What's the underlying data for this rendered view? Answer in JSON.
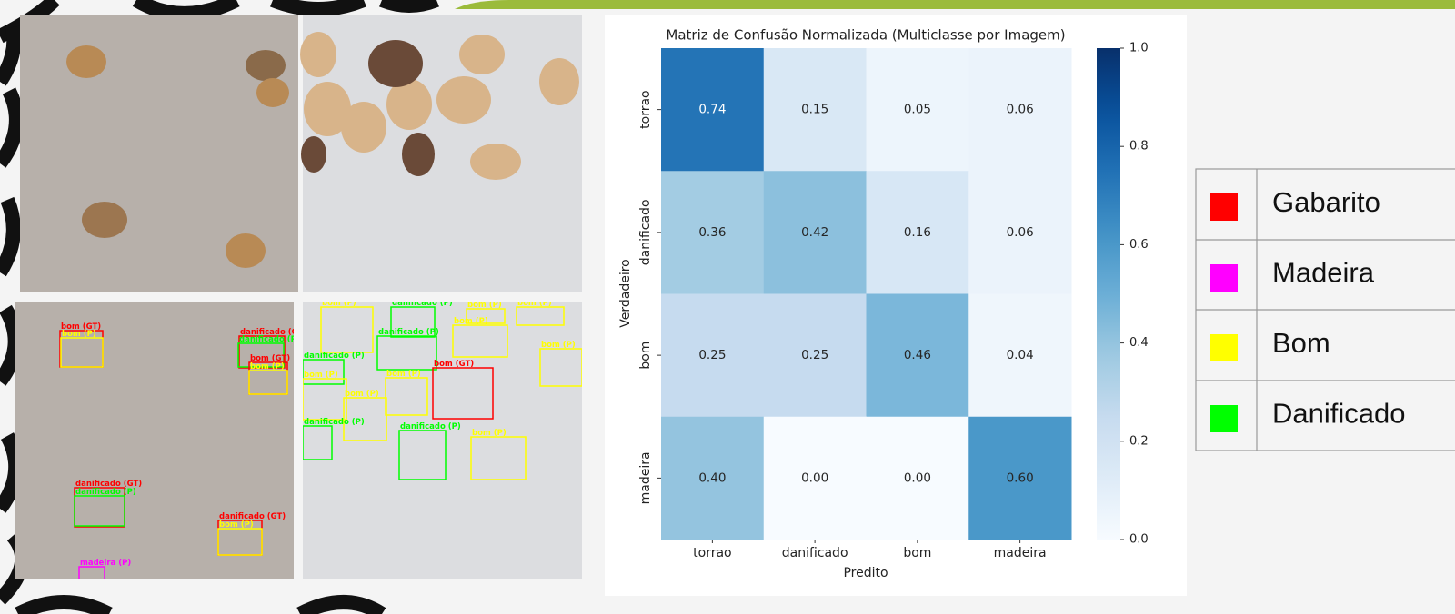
{
  "chart_data": {
    "type": "heatmap",
    "title": "Matriz de Confusão Normalizada (Multiclasse por Imagem)",
    "xlabel": "Predito",
    "ylabel": "Verdadeiro",
    "categories": [
      "torrao",
      "danificado",
      "bom",
      "madeira"
    ],
    "row_categories": [
      "torrao",
      "danificado",
      "bom",
      "madeira"
    ],
    "values": [
      [
        0.74,
        0.15,
        0.05,
        0.06
      ],
      [
        0.36,
        0.42,
        0.16,
        0.06
      ],
      [
        0.25,
        0.25,
        0.46,
        0.04
      ],
      [
        0.4,
        0.0,
        0.0,
        0.6
      ]
    ],
    "value_labels": [
      [
        "0.74",
        "0.15",
        "0.05",
        "0.06"
      ],
      [
        "0.36",
        "0.42",
        "0.16",
        "0.06"
      ],
      [
        "0.25",
        "0.25",
        "0.46",
        "0.04"
      ],
      [
        "0.40",
        "0.00",
        "0.00",
        "0.60"
      ]
    ],
    "cmap": "Blues",
    "clim": [
      0,
      1
    ],
    "cticks": [
      {
        "value": 0,
        "label": "0.0"
      },
      0.2,
      0.4,
      0.6,
      0.8,
      {
        "value": 1,
        "label": "1.0"
      }
    ]
  },
  "legend": {
    "items": [
      {
        "label": "Gabarito",
        "color": "#ff0000"
      },
      {
        "label": "Madeira",
        "color": "#ff00ff"
      },
      {
        "label": "Bom",
        "color": "#ffff00"
      },
      {
        "label": "Danificado",
        "color": "#00ff00"
      }
    ]
  },
  "photos": {
    "boxes": [
      {
        "label": "bom (GT)",
        "color": "#ff0000"
      },
      {
        "label": "bom (P)",
        "color": "#ffff00"
      },
      {
        "label": "danificado (GT)",
        "color": "#ff0000"
      },
      {
        "label": "danificado (P)",
        "color": "#00ff00"
      },
      {
        "label": "bom (GT)",
        "color": "#ff0000"
      },
      {
        "label": "bom (P)",
        "color": "#ffff00"
      },
      {
        "label": "danificado (GT)",
        "color": "#ff0000"
      },
      {
        "label": "danificado (P)",
        "color": "#00ff00"
      },
      {
        "label": "danificado (GT)",
        "color": "#ff0000"
      },
      {
        "label": "bom (P)",
        "color": "#ffff00"
      },
      {
        "label": "madeira (P)",
        "color": "#ff00ff"
      },
      {
        "label": "bom (P)",
        "color": "#ffff00"
      },
      {
        "label": "danificado (P)",
        "color": "#00ff00"
      },
      {
        "label": "bom (P)",
        "color": "#ffff00"
      },
      {
        "label": "bom (P)",
        "color": "#ffff00"
      },
      {
        "label": "bom (P)",
        "color": "#ffff00"
      },
      {
        "label": "danificado (P)",
        "color": "#00ff00"
      },
      {
        "label": "danificado (P)",
        "color": "#00ff00"
      },
      {
        "label": "bom (P)",
        "color": "#ffff00"
      },
      {
        "label": "bom (P)",
        "color": "#ffff00"
      },
      {
        "label": "bom (P)",
        "color": "#ffff00"
      },
      {
        "label": "bom (GT)",
        "color": "#ff0000"
      },
      {
        "label": "bom (P)",
        "color": "#ffff00"
      },
      {
        "label": "danificado (P)",
        "color": "#00ff00"
      },
      {
        "label": "danificado (P)",
        "color": "#00ff00"
      },
      {
        "label": "bom (P)",
        "color": "#ffff00"
      }
    ]
  }
}
